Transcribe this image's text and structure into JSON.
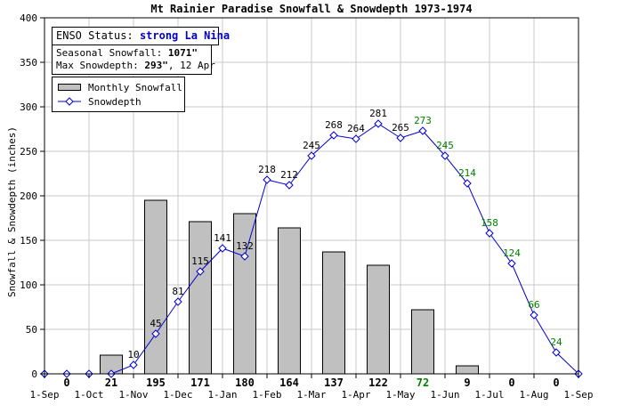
{
  "chart_data": {
    "type": "bar+line",
    "title": "Mt Rainier Paradise Snowfall & Snowdepth 1973-1974",
    "ylabel": "Snowfall & Snowdepth (inches)",
    "xlabel": "",
    "ylim": [
      0,
      400
    ],
    "yticks": [
      0,
      50,
      100,
      150,
      200,
      250,
      300,
      350,
      400
    ],
    "grid": true,
    "x_tick_labels": [
      "1-Sep",
      "1-Oct",
      "1-Nov",
      "1-Dec",
      "1-Jan",
      "1-Feb",
      "1-Mar",
      "1-Apr",
      "1-May",
      "1-Jun",
      "1-Jul",
      "1-Aug",
      "1-Sep"
    ],
    "enso": {
      "label": "ENSO Status:",
      "value": "strong La Nina",
      "color": "#0000cc"
    },
    "seasonal_snowfall": {
      "label": "Seasonal Snowfall:",
      "value": "1071\""
    },
    "max_snowdepth": {
      "label": "Max Snowdepth:",
      "value": "293\"",
      "date": ", 12 Apr"
    },
    "legend": {
      "bar_label": "Monthly Snowfall",
      "line_label": "Snowdepth"
    },
    "monthly_snowfall": {
      "name": "Monthly Snowfall",
      "color": "#c0c0c0",
      "months": [
        "Sep",
        "Oct",
        "Nov",
        "Dec",
        "Jan",
        "Feb",
        "Mar",
        "Apr",
        "May",
        "Jun",
        "Jul",
        "Aug"
      ],
      "values": [
        0,
        21,
        195,
        171,
        180,
        164,
        137,
        122,
        72,
        9,
        0,
        0
      ],
      "label_colors": [
        "#000000",
        "#000000",
        "#000000",
        "#000000",
        "#000000",
        "#000000",
        "#000000",
        "#000000",
        "#008000",
        "#000000",
        "#000000",
        "#000000"
      ]
    },
    "snowdepth": {
      "name": "Snowdepth",
      "color": "#0000cc",
      "x_month": [
        0,
        0.5,
        1,
        1.5,
        2,
        2.5,
        3,
        3.5,
        4,
        4.5,
        5,
        5.5,
        6,
        6.5,
        7,
        7.5,
        8,
        8.5,
        9,
        9.5,
        10,
        10.5,
        11,
        11.5,
        12
      ],
      "values": [
        0,
        0,
        0,
        0,
        10,
        45,
        81,
        115,
        141,
        132,
        218,
        212,
        245,
        268,
        264,
        281,
        265,
        273,
        245,
        214,
        158,
        124,
        66,
        24,
        0
      ],
      "labels": [
        "",
        "",
        "",
        "",
        "10",
        "45",
        "81",
        "115",
        "141",
        "132",
        "218",
        "212",
        "245",
        "268",
        "264",
        "281",
        "265",
        "273",
        "245",
        "214",
        "158",
        "124",
        "66",
        "24",
        ""
      ],
      "label_colors": [
        "#000000",
        "#000000",
        "#000000",
        "#000000",
        "#000000",
        "#000000",
        "#000000",
        "#000000",
        "#000000",
        "#000000",
        "#000000",
        "#000000",
        "#000000",
        "#000000",
        "#000000",
        "#000000",
        "#000000",
        "#008000",
        "#008000",
        "#008000",
        "#008000",
        "#008000",
        "#008000",
        "#008000",
        "#000000"
      ]
    }
  }
}
